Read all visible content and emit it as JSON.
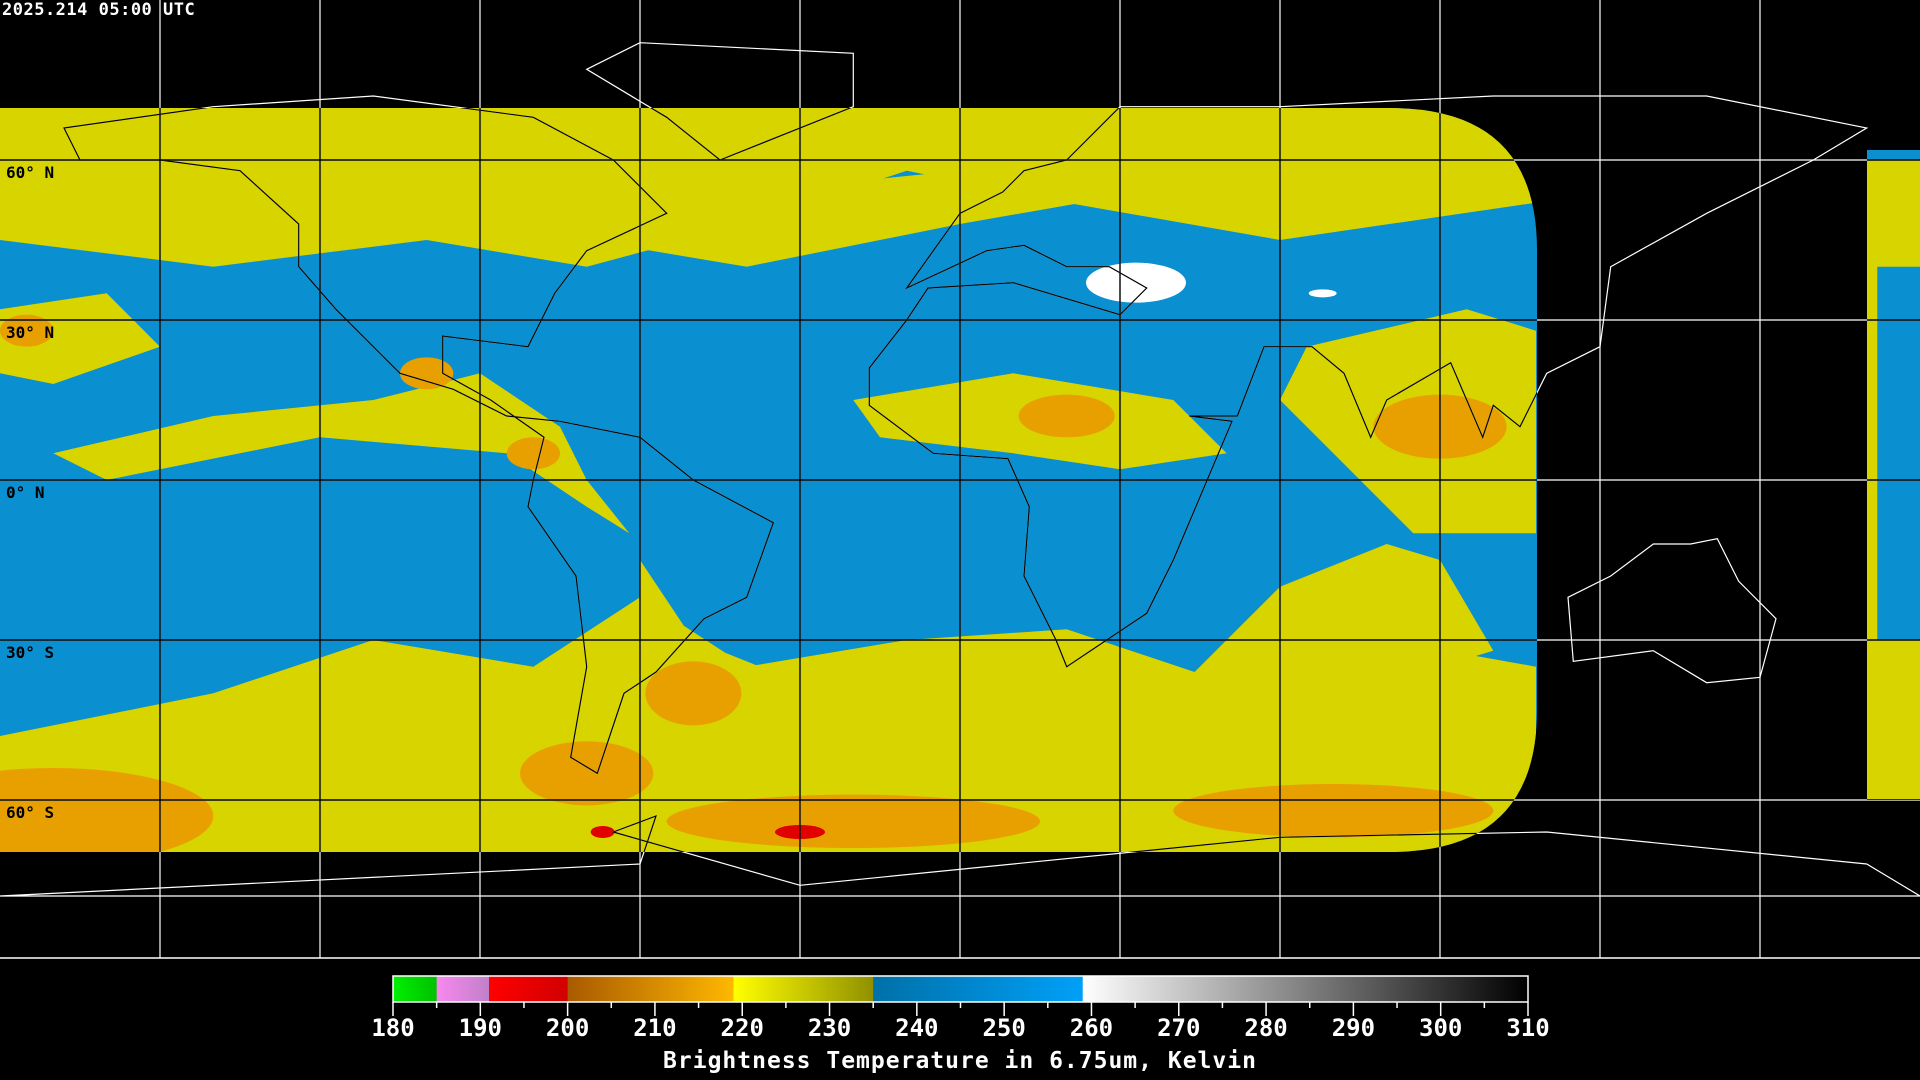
{
  "header": {
    "timestamp": "2025.214 05:00 UTC"
  },
  "map": {
    "projection": "equirectangular",
    "lat_labels": [
      "60° N",
      "30° N",
      "0° N",
      "30° S",
      "60° S"
    ],
    "colors": {
      "background": "#000000",
      "grid": "#ffffff",
      "coast_on_data": "#000000",
      "coast_off_data": "#ffffff",
      "dry": "#0a8fd0",
      "moist": "#d8d400",
      "cold": "#e8a000",
      "very_cold": "#e00000",
      "warm": "#ffffff"
    }
  },
  "colorbar": {
    "title": "Brightness Temperature in 6.75um, Kelvin",
    "range": [
      180,
      310
    ],
    "tick_labels": [
      "180",
      "190",
      "200",
      "210",
      "220",
      "230",
      "240",
      "250",
      "260",
      "270",
      "280",
      "290",
      "300",
      "310"
    ],
    "segments": [
      {
        "from": 180,
        "to": 185,
        "start": "#00f000",
        "end": "#00c000"
      },
      {
        "from": 185,
        "to": 191,
        "start": "#f888f0",
        "end": "#c080c8"
      },
      {
        "from": 191,
        "to": 200,
        "start": "#ff0000",
        "end": "#d00000"
      },
      {
        "from": 200,
        "to": 219,
        "start": "#a85a00",
        "end": "#ffb800"
      },
      {
        "from": 219,
        "to": 235,
        "start": "#ffff00",
        "end": "#909000"
      },
      {
        "from": 235,
        "to": 259,
        "start": "#0070a8",
        "end": "#00a0f8"
      },
      {
        "from": 259,
        "to": 310,
        "start": "#ffffff",
        "end": "#000000"
      }
    ]
  }
}
